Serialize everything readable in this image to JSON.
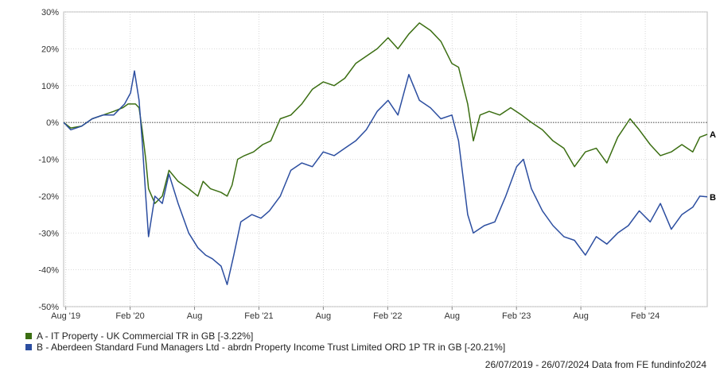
{
  "chart_data": {
    "type": "line",
    "title": "",
    "xlabel": "",
    "ylabel": "",
    "x_tick_labels": [
      "Aug '19",
      "Feb '20",
      "Aug",
      "Feb '21",
      "Aug",
      "Feb '22",
      "Aug",
      "Feb '23",
      "Aug",
      "Feb '24"
    ],
    "y_tick_labels": [
      "30%",
      "20%",
      "10%",
      "0%",
      "-10%",
      "-20%",
      "-30%",
      "-40%",
      "-50%"
    ],
    "ylim": [
      -50,
      30
    ],
    "x_range": [
      "2019-07-26",
      "2024-07-26"
    ],
    "grid": true,
    "series": [
      {
        "key": "A",
        "end_label": "A",
        "name": "A - IT Property - UK Commercial TR in GB [-3.22%]",
        "color": "#3b6e12",
        "points": [
          [
            "2019-07-26",
            0
          ],
          [
            "2019-08-15",
            -1.5
          ],
          [
            "2019-09-15",
            -1
          ],
          [
            "2019-10-15",
            1
          ],
          [
            "2019-11-15",
            2
          ],
          [
            "2019-12-15",
            3
          ],
          [
            "2020-01-10",
            4
          ],
          [
            "2020-01-25",
            5
          ],
          [
            "2020-02-15",
            5
          ],
          [
            "2020-02-25",
            4
          ],
          [
            "2020-03-05",
            -2
          ],
          [
            "2020-03-15",
            -10
          ],
          [
            "2020-03-23",
            -18
          ],
          [
            "2020-04-10",
            -22
          ],
          [
            "2020-05-01",
            -20
          ],
          [
            "2020-05-20",
            -13
          ],
          [
            "2020-06-15",
            -16
          ],
          [
            "2020-07-15",
            -18
          ],
          [
            "2020-08-10",
            -20
          ],
          [
            "2020-08-25",
            -16
          ],
          [
            "2020-09-15",
            -18
          ],
          [
            "2020-10-15",
            -19
          ],
          [
            "2020-11-01",
            -20
          ],
          [
            "2020-11-15",
            -17
          ],
          [
            "2020-12-01",
            -10
          ],
          [
            "2020-12-20",
            -9
          ],
          [
            "2021-01-15",
            -8
          ],
          [
            "2021-02-10",
            -6
          ],
          [
            "2021-03-05",
            -5
          ],
          [
            "2021-04-01",
            1
          ],
          [
            "2021-05-01",
            2
          ],
          [
            "2021-06-01",
            5
          ],
          [
            "2021-07-01",
            9
          ],
          [
            "2021-08-01",
            11
          ],
          [
            "2021-09-01",
            10
          ],
          [
            "2021-10-01",
            12
          ],
          [
            "2021-11-01",
            16
          ],
          [
            "2021-12-01",
            18
          ],
          [
            "2022-01-01",
            20
          ],
          [
            "2022-02-01",
            23
          ],
          [
            "2022-03-01",
            20
          ],
          [
            "2022-04-01",
            24
          ],
          [
            "2022-05-01",
            27
          ],
          [
            "2022-06-01",
            25
          ],
          [
            "2022-07-01",
            22
          ],
          [
            "2022-08-01",
            16
          ],
          [
            "2022-08-20",
            15
          ],
          [
            "2022-09-15",
            5
          ],
          [
            "2022-10-01",
            -5
          ],
          [
            "2022-10-20",
            2
          ],
          [
            "2022-11-15",
            3
          ],
          [
            "2022-12-15",
            2
          ],
          [
            "2023-01-15",
            4
          ],
          [
            "2023-02-15",
            2
          ],
          [
            "2023-03-15",
            0
          ],
          [
            "2023-04-15",
            -2
          ],
          [
            "2023-05-15",
            -5
          ],
          [
            "2023-06-15",
            -7
          ],
          [
            "2023-07-15",
            -12
          ],
          [
            "2023-08-15",
            -8
          ],
          [
            "2023-09-15",
            -7
          ],
          [
            "2023-10-15",
            -11
          ],
          [
            "2023-11-15",
            -4
          ],
          [
            "2023-12-20",
            1
          ],
          [
            "2024-01-15",
            -2
          ],
          [
            "2024-02-15",
            -6
          ],
          [
            "2024-03-15",
            -9
          ],
          [
            "2024-04-15",
            -8
          ],
          [
            "2024-05-15",
            -6
          ],
          [
            "2024-06-15",
            -8
          ],
          [
            "2024-07-05",
            -4
          ],
          [
            "2024-07-26",
            -3.22
          ]
        ]
      },
      {
        "key": "B",
        "end_label": "B",
        "name": "B - Aberdeen Standard Fund Managers Ltd - abrdn Property Income Trust Limited ORD 1P TR in GB [-20.21%]",
        "color": "#2c4ea0",
        "points": [
          [
            "2019-07-26",
            0
          ],
          [
            "2019-08-15",
            -2
          ],
          [
            "2019-09-15",
            -1
          ],
          [
            "2019-10-15",
            1
          ],
          [
            "2019-11-15",
            2
          ],
          [
            "2019-12-15",
            2
          ],
          [
            "2020-01-15",
            5
          ],
          [
            "2020-02-01",
            8
          ],
          [
            "2020-02-12",
            14
          ],
          [
            "2020-02-25",
            6
          ],
          [
            "2020-03-05",
            -5
          ],
          [
            "2020-03-15",
            -20
          ],
          [
            "2020-03-23",
            -31
          ],
          [
            "2020-04-10",
            -20
          ],
          [
            "2020-05-01",
            -22
          ],
          [
            "2020-05-20",
            -14
          ],
          [
            "2020-06-15",
            -22
          ],
          [
            "2020-07-15",
            -30
          ],
          [
            "2020-08-10",
            -34
          ],
          [
            "2020-09-01",
            -36
          ],
          [
            "2020-09-20",
            -37
          ],
          [
            "2020-10-15",
            -39
          ],
          [
            "2020-11-01",
            -44
          ],
          [
            "2020-11-20",
            -36
          ],
          [
            "2020-12-10",
            -27
          ],
          [
            "2021-01-10",
            -25
          ],
          [
            "2021-02-05",
            -26
          ],
          [
            "2021-03-01",
            -24
          ],
          [
            "2021-04-01",
            -20
          ],
          [
            "2021-05-01",
            -13
          ],
          [
            "2021-06-01",
            -11
          ],
          [
            "2021-07-01",
            -12
          ],
          [
            "2021-08-01",
            -8
          ],
          [
            "2021-09-01",
            -9
          ],
          [
            "2021-10-01",
            -7
          ],
          [
            "2021-11-01",
            -5
          ],
          [
            "2021-12-01",
            -2
          ],
          [
            "2022-01-01",
            3
          ],
          [
            "2022-02-01",
            6
          ],
          [
            "2022-03-01",
            2
          ],
          [
            "2022-04-01",
            13
          ],
          [
            "2022-05-01",
            6
          ],
          [
            "2022-06-01",
            4
          ],
          [
            "2022-07-01",
            1
          ],
          [
            "2022-08-01",
            2
          ],
          [
            "2022-08-20",
            -5
          ],
          [
            "2022-09-15",
            -25
          ],
          [
            "2022-10-01",
            -30
          ],
          [
            "2022-11-01",
            -28
          ],
          [
            "2022-12-01",
            -27
          ],
          [
            "2023-01-01",
            -20
          ],
          [
            "2023-02-01",
            -12
          ],
          [
            "2023-02-20",
            -10
          ],
          [
            "2023-03-15",
            -18
          ],
          [
            "2023-04-15",
            -24
          ],
          [
            "2023-05-15",
            -28
          ],
          [
            "2023-06-15",
            -31
          ],
          [
            "2023-07-15",
            -32
          ],
          [
            "2023-08-15",
            -36
          ],
          [
            "2023-09-15",
            -31
          ],
          [
            "2023-10-15",
            -33
          ],
          [
            "2023-11-15",
            -30
          ],
          [
            "2023-12-15",
            -28
          ],
          [
            "2024-01-15",
            -24
          ],
          [
            "2024-02-15",
            -27
          ],
          [
            "2024-03-15",
            -22
          ],
          [
            "2024-04-15",
            -29
          ],
          [
            "2024-05-15",
            -25
          ],
          [
            "2024-06-15",
            -23
          ],
          [
            "2024-07-05",
            -20
          ],
          [
            "2024-07-26",
            -20.21
          ]
        ]
      }
    ]
  },
  "legend": [
    {
      "label": "A - IT Property - UK Commercial TR in GB [-3.22%]",
      "color": "#3b6e12"
    },
    {
      "label": "B - Aberdeen Standard Fund Managers Ltd - abrdn Property Income Trust Limited ORD 1P TR in GB [-20.21%]",
      "color": "#2c4ea0"
    }
  ],
  "footer": "26/07/2019 - 26/07/2024 Data from FE fundinfo2024"
}
